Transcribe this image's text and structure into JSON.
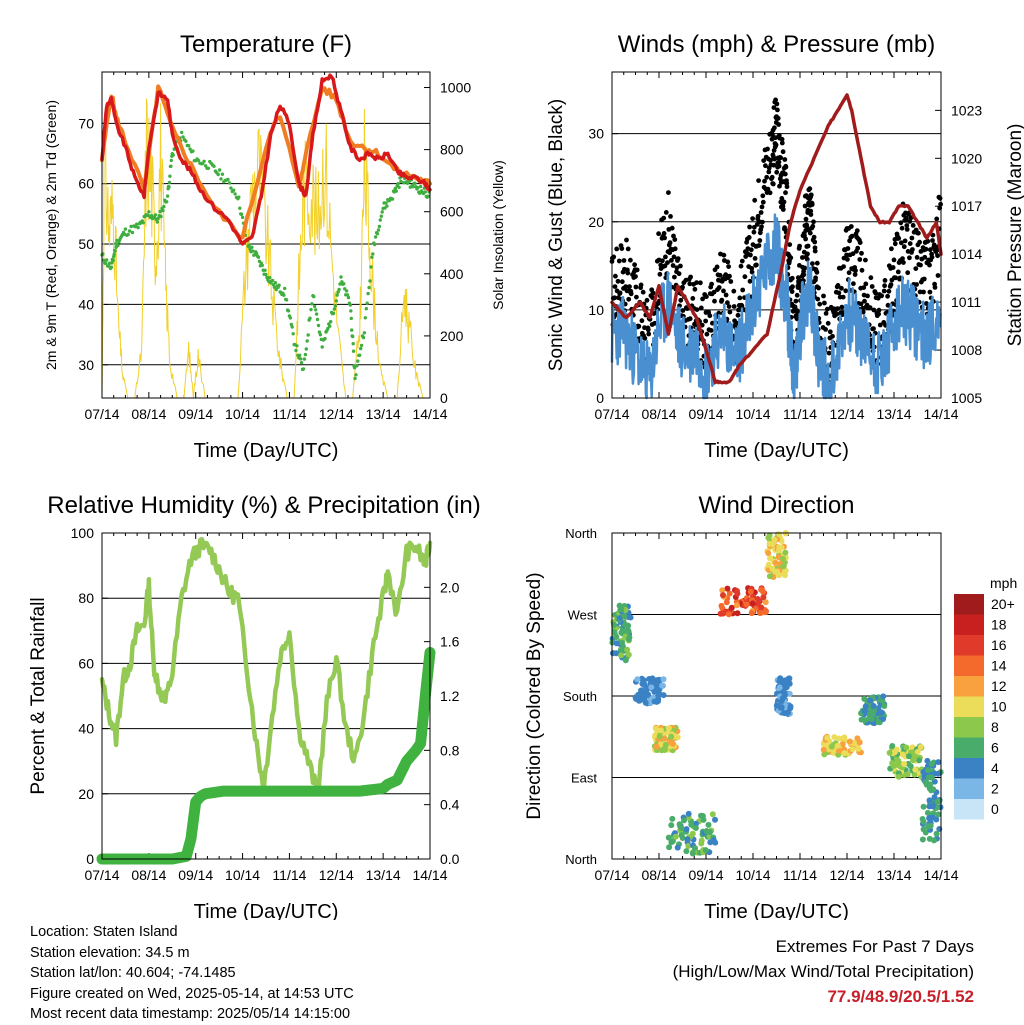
{
  "chart_data": [
    {
      "type": "line",
      "title": "Temperature (F)",
      "xlabel": "Time (Day/UTC)",
      "ylabel": "2m & 9m T (Red, Orange) & 2m Td (Green)",
      "y2label": "Solar Insolation (Yellow)",
      "x_ticks": [
        "07/14",
        "08/14",
        "09/14",
        "10/14",
        "11/14",
        "12/14",
        "13/14",
        "14/14"
      ],
      "ylim": [
        24.5,
        78.5
      ],
      "y_ticks": [
        30,
        40,
        50,
        60,
        70
      ],
      "y2lim": [
        0,
        1050
      ],
      "y2_ticks": [
        0,
        200,
        400,
        600,
        800,
        1000
      ],
      "grid": "horizontal",
      "series": [
        {
          "axis": "left",
          "color": "#d7191c",
          "x": [
            0,
            0.1,
            0.2,
            0.3,
            0.5,
            0.7,
            0.9,
            1.0,
            1.2,
            1.4,
            1.5,
            1.7,
            1.9,
            2.1,
            2.4,
            2.7,
            3.0,
            3.2,
            3.4,
            3.6,
            3.8,
            4.0,
            4.2,
            4.35,
            4.5,
            4.7,
            4.9,
            5.1,
            5.3,
            5.5,
            5.7,
            5.9,
            6.1,
            6.3,
            6.5,
            6.7,
            6.9,
            7.0
          ],
          "values": [
            64,
            73,
            74,
            70,
            66,
            61,
            58,
            66,
            75,
            74,
            68,
            64,
            62,
            59,
            56,
            54,
            50,
            51,
            58,
            68,
            73,
            70,
            60,
            58,
            68,
            77,
            78,
            72,
            66,
            64,
            65,
            64,
            65,
            62,
            61,
            61,
            60,
            59
          ]
        },
        {
          "axis": "left",
          "color": "#f07d24",
          "x": [
            0,
            0.2,
            0.3,
            0.5,
            0.9,
            1.2,
            1.5,
            1.9,
            2.4,
            3.0,
            3.6,
            3.8,
            4.2,
            4.7,
            5.0,
            5.3,
            5.6,
            5.9,
            6.3,
            6.7,
            7.0
          ],
          "values": [
            64,
            75,
            71,
            67,
            59,
            76,
            69,
            63,
            56,
            51,
            69,
            71,
            60,
            76,
            74,
            67,
            66,
            65,
            62,
            61,
            60
          ]
        },
        {
          "axis": "left",
          "color": "#3fae3f",
          "x": [
            0,
            0.2,
            0.3,
            0.5,
            0.8,
            1.0,
            1.2,
            1.4,
            1.5,
            1.7,
            2.0,
            2.3,
            2.6,
            2.9,
            3.1,
            3.3,
            3.5,
            3.7,
            3.9,
            4.1,
            4.3,
            4.5,
            4.7,
            4.9,
            5.1,
            5.3,
            5.4,
            5.6,
            5.8,
            6.0,
            6.2,
            6.4,
            6.6,
            6.8,
            7.0
          ],
          "values": [
            48,
            46,
            50,
            52,
            53,
            55,
            54,
            58,
            65,
            68,
            64,
            63,
            61,
            58,
            50,
            48,
            45,
            43,
            42,
            34,
            29,
            42,
            33,
            38,
            44,
            40,
            28,
            36,
            50,
            56,
            58,
            61,
            60,
            59,
            58
          ]
        },
        {
          "axis": "right",
          "color": "#f2d02a",
          "x": [
            0,
            0.05,
            0.15,
            0.25,
            0.35,
            0.45,
            0.55,
            0.7,
            0.85,
            0.95,
            1.05,
            1.15,
            1.25,
            1.35,
            1.45,
            1.6,
            1.75,
            1.85,
            1.95,
            2.05,
            2.2,
            2.35,
            2.6,
            2.9,
            3.05,
            3.2,
            3.35,
            3.5,
            3.65,
            3.8,
            3.95,
            4.1,
            4.2,
            4.3,
            4.45,
            4.6,
            4.75,
            4.9,
            5.05,
            5.2,
            5.35,
            5.5,
            5.6,
            5.7,
            5.8,
            5.95,
            6.1,
            6.3,
            6.45,
            6.55,
            6.7,
            6.85,
            7.0
          ],
          "values": [
            0,
            1000,
            700,
            800,
            300,
            80,
            0,
            0,
            200,
            1050,
            900,
            600,
            1000,
            500,
            150,
            0,
            0,
            200,
            0,
            180,
            0,
            0,
            0,
            0,
            500,
            850,
            950,
            700,
            400,
            150,
            0,
            0,
            480,
            850,
            900,
            700,
            1030,
            600,
            250,
            0,
            0,
            300,
            950,
            700,
            400,
            100,
            0,
            0,
            450,
            300,
            100,
            0,
            0
          ]
        }
      ]
    },
    {
      "type": "line",
      "title": "Winds (mph) & Pressure (mb)",
      "xlabel": "Time (Day/UTC)",
      "ylabel": "Sonic Wind & Gust (Blue, Black)",
      "y2label": "Station Pressure (Maroon)",
      "x_ticks": [
        "07/14",
        "08/14",
        "09/14",
        "10/14",
        "11/14",
        "12/14",
        "13/14",
        "14/14"
      ],
      "ylim": [
        0,
        37
      ],
      "y_ticks": [
        0,
        10,
        20,
        30
      ],
      "y2lim": [
        1005,
        1025.4
      ],
      "y2_ticks": [
        1005,
        1008,
        1011,
        1014,
        1017,
        1020,
        1023
      ],
      "grid": "horizontal",
      "series": [
        {
          "axis": "left",
          "color": "#000000",
          "style": "points",
          "x": [
            0,
            0.2,
            0.4,
            0.6,
            0.8,
            1.0,
            1.2,
            1.4,
            1.6,
            1.8,
            2.0,
            2.2,
            2.4,
            2.6,
            2.8,
            3.0,
            3.2,
            3.4,
            3.5,
            3.6,
            3.7,
            3.8,
            3.9,
            4.0,
            4.1,
            4.2,
            4.3,
            4.4,
            4.6,
            4.8,
            5.0,
            5.2,
            5.4,
            5.6,
            5.8,
            6.0,
            6.2,
            6.4,
            6.6,
            6.8,
            7.0
          ],
          "values": [
            12,
            14,
            13,
            9,
            6,
            15,
            19,
            12,
            9,
            10,
            7,
            11,
            14,
            8,
            12,
            17,
            24,
            28,
            30,
            26,
            22,
            12,
            6,
            14,
            19,
            21,
            16,
            9,
            6,
            9,
            17,
            15,
            11,
            8,
            9,
            14,
            18,
            16,
            13,
            14,
            20
          ]
        },
        {
          "axis": "left",
          "color": "#4a90d0",
          "x": [
            0,
            0.2,
            0.4,
            0.6,
            0.8,
            1.0,
            1.2,
            1.4,
            1.6,
            1.8,
            2.0,
            2.2,
            2.4,
            2.6,
            2.8,
            3.0,
            3.2,
            3.4,
            3.5,
            3.6,
            3.7,
            3.8,
            3.9,
            4.0,
            4.1,
            4.2,
            4.3,
            4.4,
            4.6,
            4.8,
            5.0,
            5.2,
            5.4,
            5.6,
            5.8,
            6.0,
            6.2,
            6.4,
            6.6,
            6.8,
            7.0
          ],
          "values": [
            7,
            8,
            6,
            4,
            2,
            8,
            11,
            7,
            5,
            6,
            3,
            6,
            8,
            4,
            7,
            10,
            14,
            16,
            18,
            14,
            12,
            6,
            2,
            8,
            11,
            12,
            9,
            5,
            2,
            5,
            10,
            8,
            6,
            4,
            5,
            8,
            10,
            9,
            7,
            8,
            10
          ]
        },
        {
          "axis": "right",
          "color": "#a01c1c",
          "x": [
            0,
            0.3,
            0.6,
            0.8,
            1.0,
            1.2,
            1.4,
            1.6,
            1.8,
            2.0,
            2.2,
            2.3,
            2.5,
            2.7,
            3.0,
            3.3,
            3.6,
            3.8,
            4.0,
            4.3,
            4.6,
            4.8,
            5.0,
            5.1,
            5.3,
            5.5,
            5.7,
            5.9,
            6.1,
            6.3,
            6.5,
            6.7,
            6.9,
            7.0
          ],
          "values": [
            1011,
            1010,
            1011,
            1010,
            1012,
            1009,
            1012,
            1011,
            1010,
            1008,
            1006,
            1006,
            1006,
            1007,
            1008,
            1009,
            1013,
            1016,
            1018,
            1020,
            1022,
            1023,
            1024,
            1023,
            1020,
            1017,
            1016,
            1016,
            1017,
            1017,
            1016,
            1015,
            1016,
            1014
          ]
        }
      ]
    },
    {
      "type": "line",
      "title": "Relative Humidity (%) & Precipitation (in)",
      "xlabel": "Time (Day/UTC)",
      "ylabel": "Percent & Total Rainfall",
      "x_ticks": [
        "07/14",
        "08/14",
        "09/14",
        "10/14",
        "11/14",
        "12/14",
        "13/14",
        "14/14"
      ],
      "ylim": [
        0,
        100
      ],
      "y_ticks": [
        0,
        20,
        40,
        60,
        80,
        100
      ],
      "y2lim": [
        0,
        2.4
      ],
      "y2_ticks": [
        0.0,
        0.4,
        0.8,
        1.2,
        1.6,
        2.0
      ],
      "grid": "horizontal",
      "series": [
        {
          "axis": "left",
          "color": "#93c954",
          "x": [
            0,
            0.15,
            0.3,
            0.45,
            0.6,
            0.75,
            0.9,
            1.0,
            1.1,
            1.2,
            1.35,
            1.5,
            1.7,
            1.9,
            2.1,
            2.3,
            2.5,
            2.7,
            2.9,
            3.1,
            3.3,
            3.45,
            3.6,
            3.8,
            4.0,
            4.2,
            4.4,
            4.6,
            4.8,
            5.0,
            5.2,
            5.4,
            5.6,
            5.8,
            6.0,
            6.1,
            6.3,
            6.5,
            6.7,
            6.9,
            7.0
          ],
          "values": [
            54,
            45,
            37,
            55,
            60,
            70,
            72,
            84,
            60,
            53,
            48,
            57,
            80,
            92,
            96,
            95,
            89,
            82,
            80,
            58,
            35,
            22,
            40,
            62,
            70,
            40,
            30,
            20,
            48,
            62,
            40,
            30,
            45,
            66,
            80,
            88,
            75,
            94,
            96,
            90,
            97
          ]
        },
        {
          "axis": "right",
          "color": "#3fb23f",
          "x": [
            0,
            1.5,
            1.8,
            1.9,
            2.0,
            2.1,
            2.2,
            2.6,
            3.0,
            4.0,
            5.0,
            5.5,
            6.0,
            6.1,
            6.3,
            6.5,
            6.7,
            6.8,
            6.9,
            7.0
          ],
          "values": [
            0,
            0,
            0.02,
            0.15,
            0.42,
            0.46,
            0.48,
            0.5,
            0.5,
            0.5,
            0.5,
            0.5,
            0.52,
            0.55,
            0.58,
            0.72,
            0.8,
            0.85,
            1.2,
            1.52
          ]
        }
      ]
    },
    {
      "type": "scatter",
      "title": "Wind Direction",
      "xlabel": "Time (Day/UTC)",
      "ylabel": "Direction (Colored By Speed)",
      "x_ticks": [
        "07/14",
        "08/14",
        "09/14",
        "10/14",
        "11/14",
        "12/14",
        "13/14",
        "14/14"
      ],
      "y_ticks": [
        "North",
        "East",
        "South",
        "West",
        "North"
      ],
      "ylim": [
        0,
        360
      ],
      "grid": "horizontal",
      "colorbar": {
        "title": "mph",
        "labels": [
          "20+",
          "18",
          "16",
          "14",
          "12",
          "10",
          "8",
          "6",
          "4",
          "2",
          "0"
        ],
        "colors": [
          "#a01c1c",
          "#c7201f",
          "#e03a2b",
          "#f46a2d",
          "#f9a03f",
          "#ebdc5a",
          "#8cc84b",
          "#4aac6a",
          "#3b82c4",
          "#7ab6e6",
          "#c7e5f7"
        ]
      },
      "clusters": [
        {
          "x": [
            0.0,
            0.4
          ],
          "y": [
            215,
            280
          ],
          "speed": [
            4,
            8
          ]
        },
        {
          "x": [
            0.5,
            1.1
          ],
          "y": [
            170,
            200
          ],
          "speed": [
            2,
            5
          ]
        },
        {
          "x": [
            0.9,
            1.4
          ],
          "y": [
            120,
            145
          ],
          "speed": [
            8,
            12
          ]
        },
        {
          "x": [
            1.2,
            2.2
          ],
          "y": [
            5,
            50
          ],
          "speed": [
            4,
            8
          ]
        },
        {
          "x": [
            2.3,
            3.3
          ],
          "y": [
            270,
            300
          ],
          "speed": [
            12,
            18
          ]
        },
        {
          "x": [
            3.3,
            3.7
          ],
          "y": [
            310,
            360
          ],
          "speed": [
            8,
            12
          ]
        },
        {
          "x": [
            3.5,
            3.8
          ],
          "y": [
            160,
            200
          ],
          "speed": [
            2,
            5
          ]
        },
        {
          "x": [
            4.5,
            5.3
          ],
          "y": [
            115,
            135
          ],
          "speed": [
            8,
            12
          ]
        },
        {
          "x": [
            5.3,
            5.8
          ],
          "y": [
            150,
            180
          ],
          "speed": [
            4,
            7
          ]
        },
        {
          "x": [
            5.9,
            6.6
          ],
          "y": [
            90,
            125
          ],
          "speed": [
            6,
            10
          ]
        },
        {
          "x": [
            6.6,
            7.0
          ],
          "y": [
            20,
            110
          ],
          "speed": [
            3,
            7
          ]
        }
      ]
    }
  ],
  "info": {
    "location": "Location: Staten Island",
    "elevation": "Station elevation: 34.5 m",
    "latlon": "Station lat/lon: 40.604; -74.1485",
    "created": "Figure created on Wed, 2025-05-14, at 14:53 UTC",
    "recent": "Most recent data timestamp: 2025/05/14 14:15:00"
  },
  "extremes": {
    "line1": "Extremes For Past 7 Days",
    "line2": "(High/Low/Max Wind/Total Precipitation)",
    "values": "77.9/48.9/20.5/1.52"
  }
}
